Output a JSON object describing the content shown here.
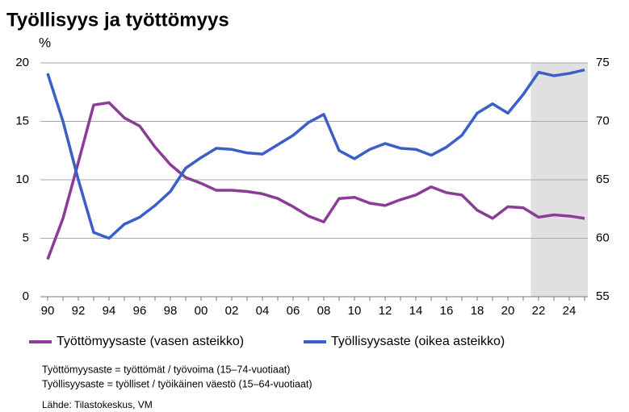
{
  "chart_data": {
    "type": "line",
    "title": "Työllisyys ja työttömyys",
    "y_label": "%",
    "categories": [
      "90",
      null,
      "92",
      null,
      "94",
      null,
      "96",
      null,
      "98",
      null,
      "00",
      null,
      "02",
      null,
      "04",
      null,
      "06",
      null,
      "08",
      null,
      "10",
      null,
      "12",
      null,
      "14",
      null,
      "16",
      null,
      "18",
      null,
      "20",
      null,
      "22",
      null,
      "24",
      null
    ],
    "shade_start": "22",
    "series": [
      {
        "name": "Työttömyysaste (vasen asteikko)",
        "color": "#8b3c97",
        "axis": "y",
        "values": [
          3.2,
          6.7,
          11.5,
          16.4,
          16.6,
          15.3,
          14.6,
          12.8,
          11.3,
          10.2,
          9.7,
          9.1,
          9.1,
          9.0,
          8.8,
          8.4,
          7.7,
          6.9,
          6.4,
          8.4,
          8.5,
          8.0,
          7.8,
          8.3,
          8.7,
          9.4,
          8.9,
          8.7,
          7.4,
          6.7,
          7.7,
          7.6,
          6.8,
          7.0,
          6.9,
          6.7
        ]
      },
      {
        "name": "Työllisyysaste (oikea asteikko)",
        "color": "#3a5fc8",
        "axis": "y2",
        "values": [
          74.1,
          70.0,
          65.0,
          60.5,
          60.0,
          61.2,
          61.8,
          62.8,
          64.0,
          66.0,
          66.9,
          67.7,
          67.6,
          67.3,
          67.2,
          68.0,
          68.8,
          69.9,
          70.6,
          67.5,
          66.8,
          67.6,
          68.1,
          67.7,
          67.6,
          67.1,
          67.8,
          68.8,
          70.7,
          71.5,
          70.7,
          72.3,
          74.2,
          73.9,
          74.1,
          74.4
        ]
      }
    ],
    "ylim": [
      0,
      20
    ],
    "yticks": [
      0,
      5,
      10,
      15,
      20
    ],
    "y2lim": [
      55,
      75
    ],
    "y2ticks": [
      55,
      60,
      65,
      70,
      75
    ],
    "grid": true,
    "notes": [
      "Työttömyysaste = työttömät / työvoima (15–74-vuotiaat)",
      "Työllisyysaste = työlliset / työikäinen väestö (15–64-vuotiaat)"
    ],
    "source": "Lähde: Tilastokeskus, VM"
  }
}
